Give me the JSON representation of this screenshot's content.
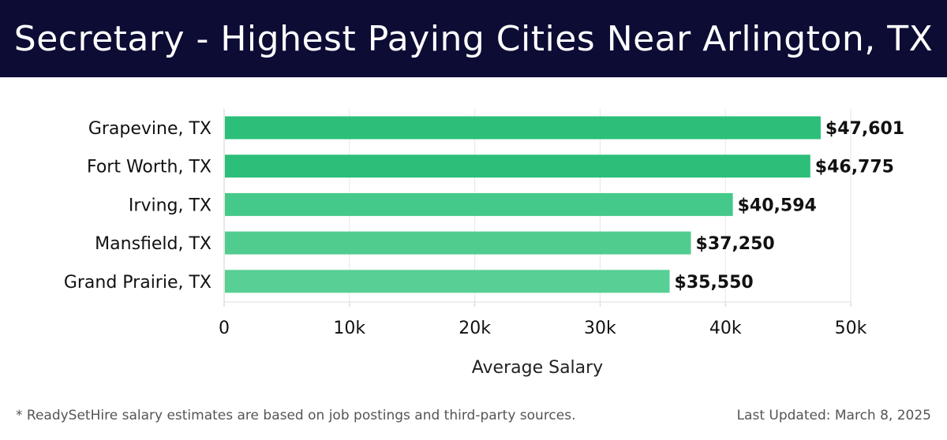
{
  "header": {
    "title": "Secretary - Highest Paying Cities Near Arlington, TX"
  },
  "chart_data": {
    "type": "bar",
    "orientation": "horizontal",
    "title": "Secretary - Highest Paying Cities Near Arlington, TX",
    "categories": [
      "Grapevine, TX",
      "Fort Worth, TX",
      "Irving, TX",
      "Mansfield, TX",
      "Grand Prairie, TX"
    ],
    "values": [
      47601,
      46775,
      40594,
      37250,
      35550
    ],
    "value_labels": [
      "$47,601",
      "$46,775",
      "$40,594",
      "$37,250",
      "$35,550"
    ],
    "xlabel": "Average Salary",
    "ylabel": "",
    "xlim": [
      0,
      50000
    ],
    "xticks": [
      0,
      10000,
      20000,
      30000,
      40000,
      50000
    ],
    "xtick_labels": [
      "0",
      "10k",
      "20k",
      "30k",
      "40k",
      "50k"
    ],
    "grid": true,
    "bar_colors": [
      "#2bbf7a",
      "#2bbf7a",
      "#45c98a",
      "#50cc8f",
      "#58cf94"
    ]
  },
  "footer": {
    "note": "* ReadySetHire salary estimates are based on job postings and third-party sources.",
    "updated": "Last Updated: March 8, 2025"
  }
}
